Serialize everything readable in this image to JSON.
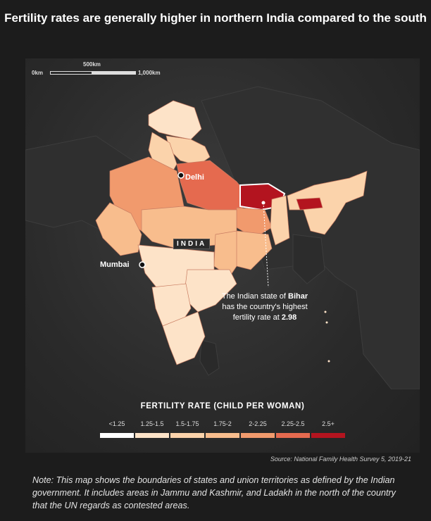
{
  "title": "Fertility rates are generally higher in northern India compared to the south",
  "scale_bar": {
    "zero": "0km",
    "mid": "500km",
    "end": "1,000km"
  },
  "cities": {
    "delhi": "Delhi",
    "mumbai": "Mumbai"
  },
  "country_label": "INDIA",
  "annotation": {
    "line1_pre": "The Indian state of ",
    "state": "Bihar",
    "line2": "has the country's highest",
    "line3_pre": "fertility rate at ",
    "value": "2.98"
  },
  "legend": {
    "title": "FERTILITY RATE (CHILD PER WOMAN)",
    "bins": [
      {
        "label": "<1.25",
        "color": "#ffffff"
      },
      {
        "label": "1.25-1.5",
        "color": "#fde3c8"
      },
      {
        "label": "1.5-1.75",
        "color": "#fbd3ab"
      },
      {
        "label": "1.75-2",
        "color": "#f8bd8d"
      },
      {
        "label": "2-2.25",
        "color": "#f19a6d"
      },
      {
        "label": "2.25-2.5",
        "color": "#e56a4f"
      },
      {
        "label": "2.5+",
        "color": "#b3141f"
      }
    ]
  },
  "source": "Source: National Family Health Survey 5, 2019-21",
  "note": "Note: This map shows the boundaries of states and union territories as defined by the Indian government. It includes areas in Jammu and Kashmir, and Ladakh in the north of the country that the UN regards as contested areas."
}
